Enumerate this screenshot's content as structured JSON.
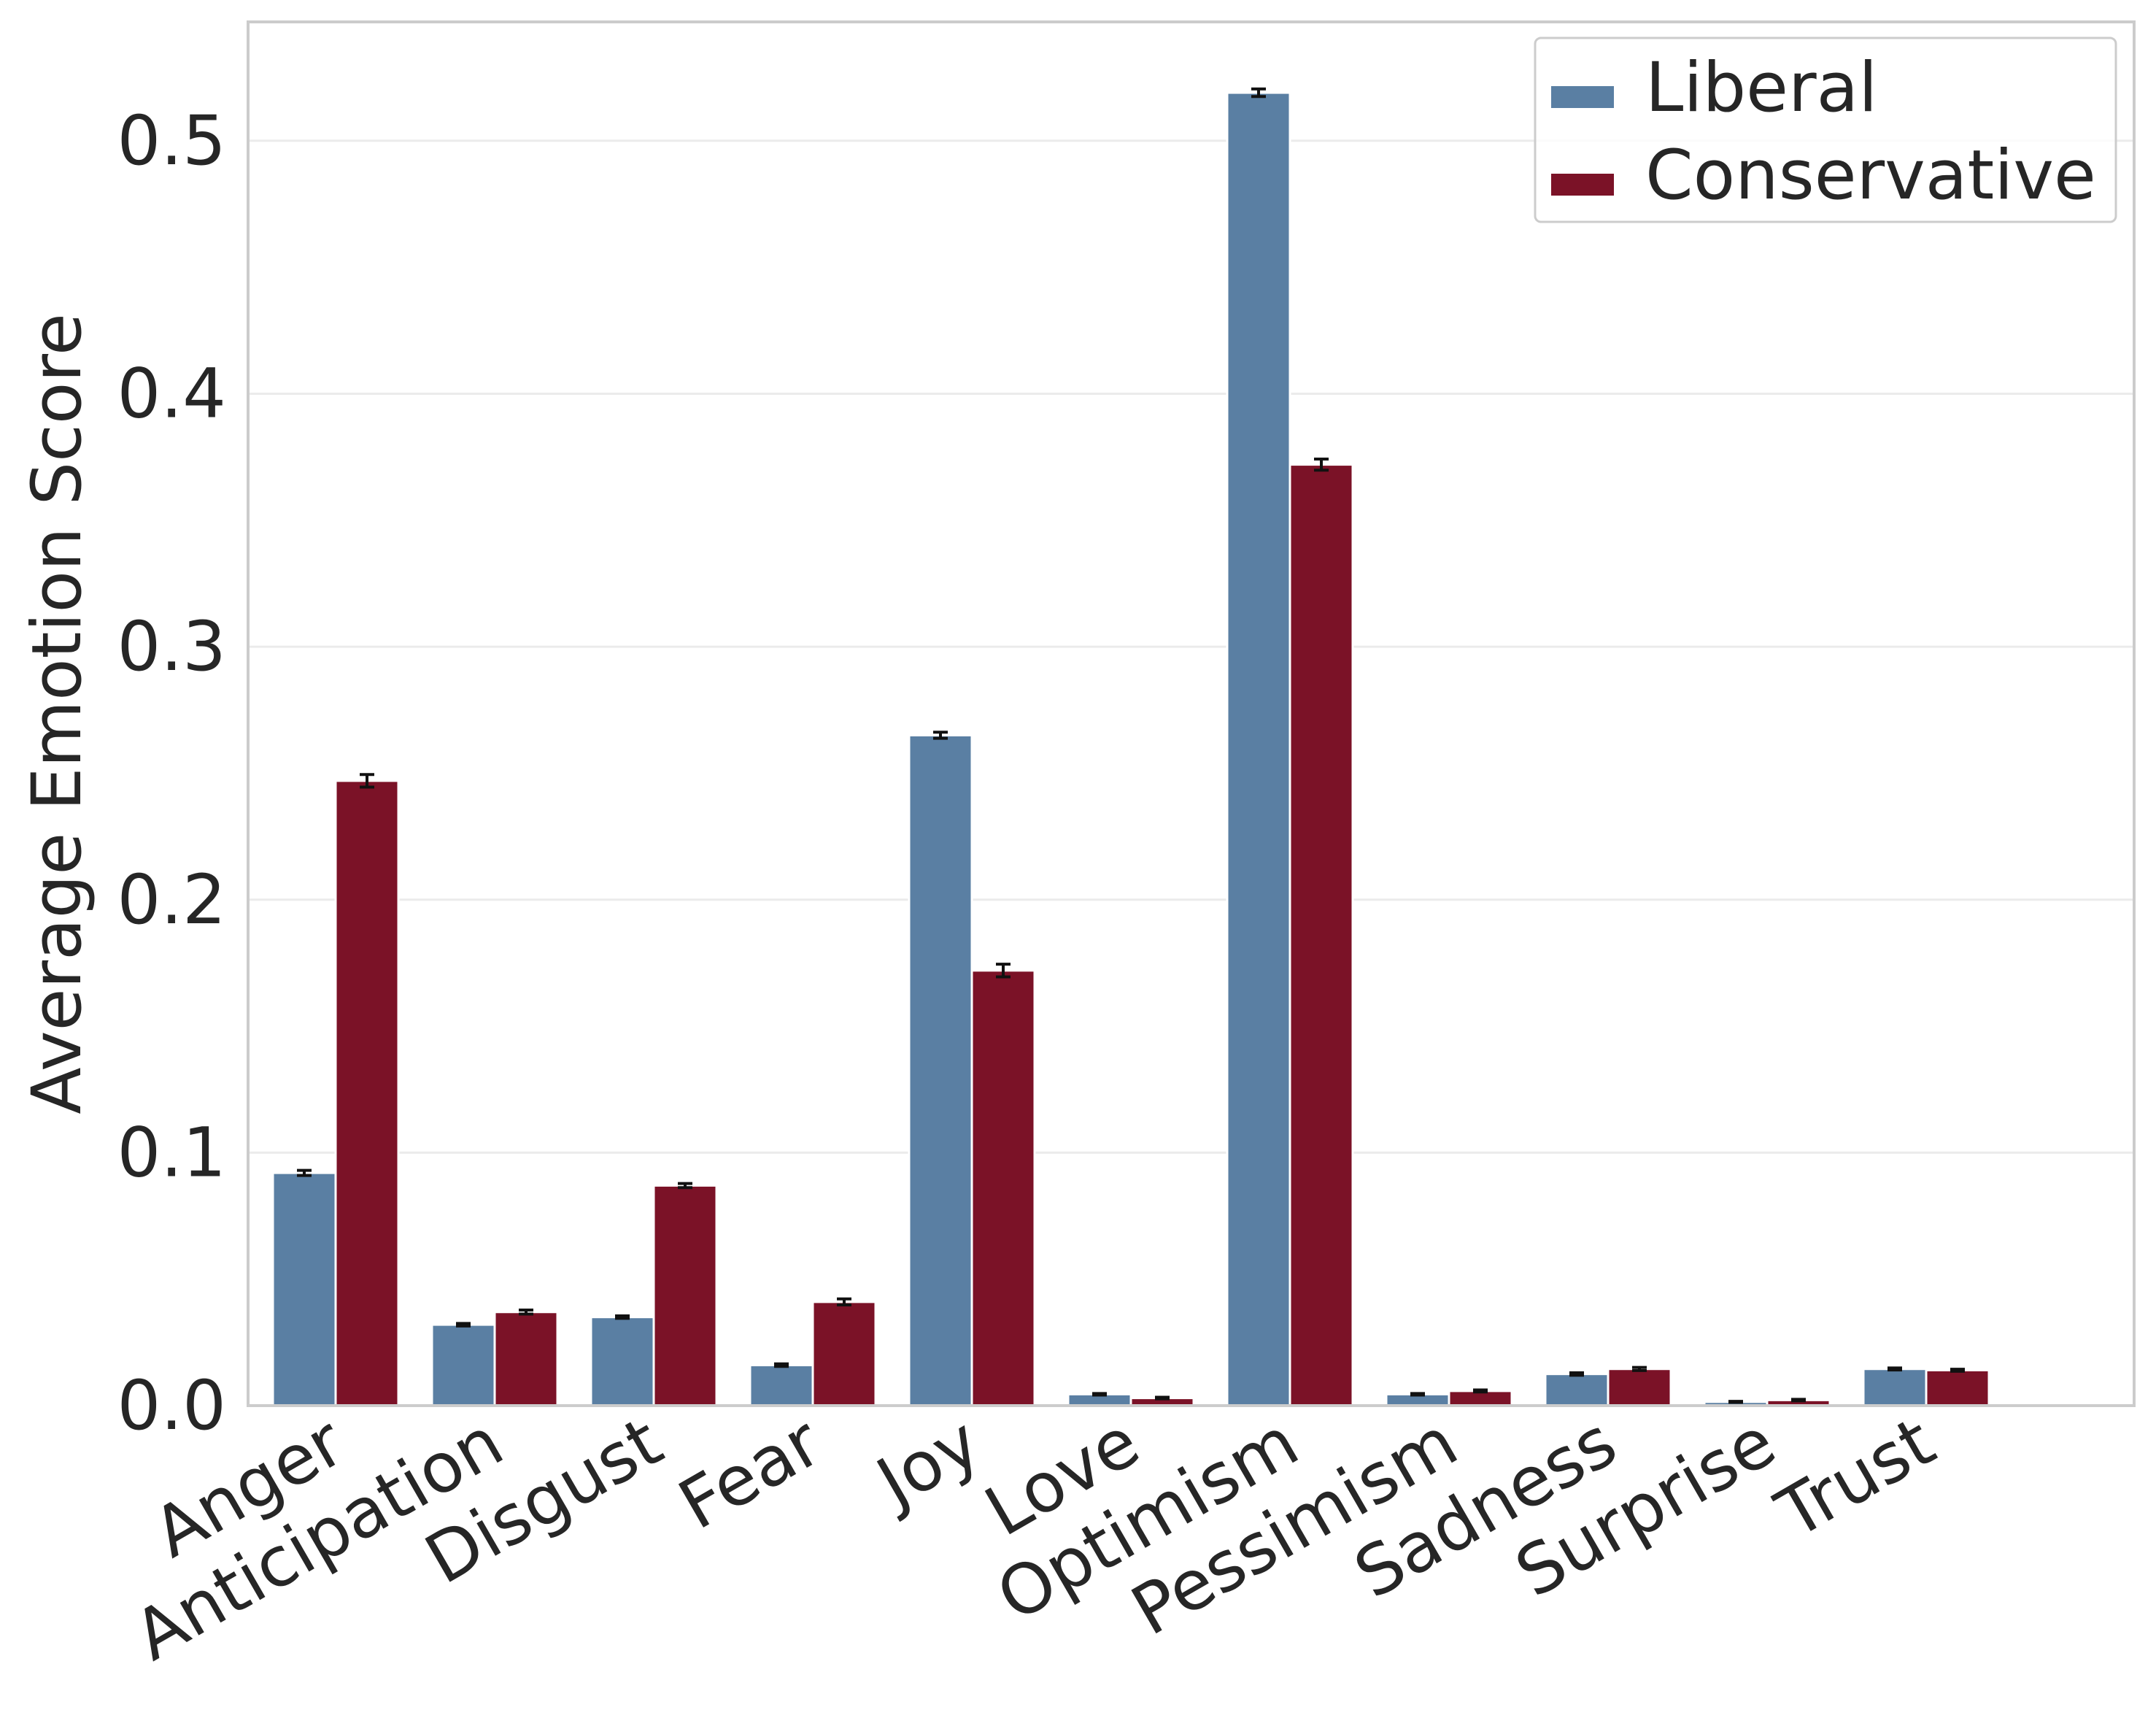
{
  "chart_data": {
    "type": "bar",
    "title": "",
    "xlabel": "",
    "ylabel": "Average Emotion Score",
    "ylim": [
      0,
      0.547
    ],
    "yticks": [
      "0.0",
      "0.1",
      "0.2",
      "0.3",
      "0.4",
      "0.5"
    ],
    "ytick_values": [
      0,
      0.1,
      0.2,
      0.3,
      0.4,
      0.5
    ],
    "grid": true,
    "legend_position": "top-right",
    "categories": [
      "Anger",
      "Anticipation",
      "Disgust",
      "Fear",
      "Joy",
      "Love",
      "Optimism",
      "Pessimism",
      "Sadness",
      "Surprise",
      "Trust"
    ],
    "series": [
      {
        "name": "Liberal",
        "color": "#5a7fa3",
        "values": [
          0.092,
          0.032,
          0.035,
          0.016,
          0.265,
          0.0045,
          0.519,
          0.0045,
          0.0125,
          0.0015,
          0.0145
        ],
        "errors": [
          0.001,
          0.0005,
          0.0005,
          0.0005,
          0.0012,
          0.0003,
          0.0015,
          0.0003,
          0.0005,
          0.0002,
          0.0004
        ]
      },
      {
        "name": "Conservative",
        "color": "#7b1227",
        "values": [
          0.247,
          0.037,
          0.087,
          0.041,
          0.172,
          0.003,
          0.372,
          0.0058,
          0.0145,
          0.0022,
          0.014
        ],
        "errors": [
          0.0025,
          0.0008,
          0.0008,
          0.0012,
          0.0025,
          0.0003,
          0.0022,
          0.0004,
          0.0006,
          0.0003,
          0.0004
        ]
      }
    ]
  }
}
